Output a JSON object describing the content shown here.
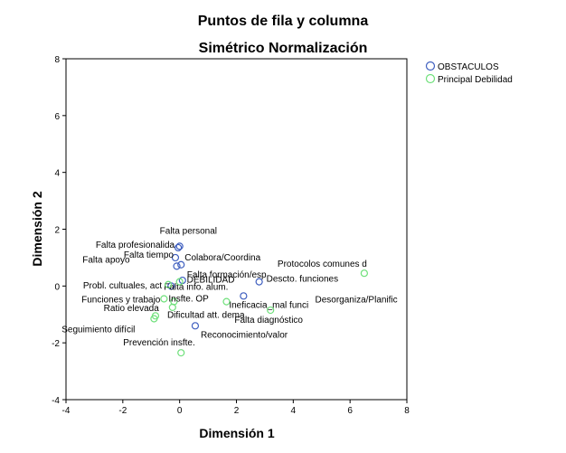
{
  "chart_data": {
    "type": "scatter",
    "title": "Puntos de fila y columna",
    "subtitle": "Simétrico Normalización",
    "xlabel": "Dimensión 1",
    "ylabel": "Dimensión 2",
    "xlim": [
      -4,
      8
    ],
    "ylim": [
      -4,
      8
    ],
    "x_ticks": [
      -4,
      -2,
      0,
      2,
      4,
      6,
      8
    ],
    "y_ticks": [
      -4,
      -2,
      0,
      2,
      4,
      6,
      8
    ],
    "grid": false,
    "legend_position": "top-right",
    "series": [
      {
        "name": "OBSTACULOS",
        "color": "#3f5fbf",
        "points": [
          {
            "label": "Falta personal",
            "x": 0.0,
            "y": 1.4
          },
          {
            "label": "Falta profesionalida",
            "x": -0.05,
            "y": 1.35
          },
          {
            "label": "Falta tiempo",
            "x": -0.15,
            "y": 1.0
          },
          {
            "label": "Falta apoyo",
            "x": -0.1,
            "y": 0.7
          },
          {
            "label": "Colabora/Coordina",
            "x": 0.05,
            "y": 0.75
          },
          {
            "label": "Falta formación/esp",
            "x": 0.1,
            "y": 0.2
          },
          {
            "label": "Falta info. alum.",
            "x": -0.3,
            "y": 0.0
          },
          {
            "label": "Descto. funciones",
            "x": 2.8,
            "y": 0.15
          },
          {
            "label": "Ineficacia_mal funci",
            "x": 2.25,
            "y": -0.35
          },
          {
            "label": "Reconocimiento/valor",
            "x": 0.55,
            "y": -1.4
          }
        ]
      },
      {
        "name": "Principal Debilidad",
        "color": "#6ee07a",
        "points": [
          {
            "label": "DEBILIDAD",
            "x": 0.0,
            "y": 0.15
          },
          {
            "label": "Probl. cultuales, act",
            "x": -0.4,
            "y": 0.05
          },
          {
            "label": "Funciones y trabajo",
            "x": -0.55,
            "y": -0.45
          },
          {
            "label": "Insfte. OP",
            "x": -0.2,
            "y": -0.55
          },
          {
            "label": "Ratio elevada",
            "x": -0.25,
            "y": -0.75
          },
          {
            "label": "Dificultad att. dema",
            "x": -0.85,
            "y": -1.05
          },
          {
            "label": "Seguimiento difícil",
            "x": -0.9,
            "y": -1.15
          },
          {
            "label": "Prevención insfte.",
            "x": 0.05,
            "y": -2.35
          },
          {
            "label": "Protocolos comunes d",
            "x": 6.5,
            "y": 0.45
          },
          {
            "label": "Desorganiza/Planific",
            "x": 1.65,
            "y": -0.55
          },
          {
            "label": "Falta diagnóstico",
            "x": 3.2,
            "y": -0.85
          }
        ]
      }
    ]
  }
}
